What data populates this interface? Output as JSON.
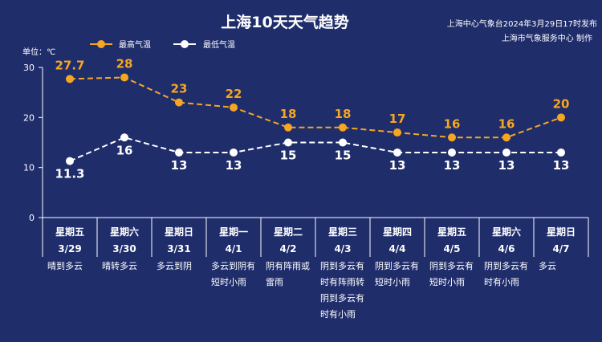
{
  "title": "上海10天天气趋势",
  "publisher": {
    "line1": "上海中心气象台2024年3月29日17时发布",
    "line2": "上海市气象服务中心 制作"
  },
  "unit_label": "单位：℃",
  "legend": {
    "high": "最高气温",
    "low": "最低气温"
  },
  "colors": {
    "background": "#1f2d6b",
    "high": "#f5a623",
    "low": "#ffffff",
    "axis": "#ffffff"
  },
  "chart_data": {
    "type": "line",
    "categories": [
      "3/29",
      "3/30",
      "3/31",
      "4/1",
      "4/2",
      "4/3",
      "4/4",
      "4/5",
      "4/6",
      "4/7"
    ],
    "weekdays": [
      "星期五",
      "星期六",
      "星期日",
      "星期一",
      "星期二",
      "星期三",
      "星期四",
      "星期五",
      "星期六",
      "星期日"
    ],
    "weather": [
      [
        "晴到多云"
      ],
      [
        "晴转多云"
      ],
      [
        "多云到阴"
      ],
      [
        "多云到阴有",
        "短时小雨"
      ],
      [
        "阴有阵雨或",
        "雷雨"
      ],
      [
        "阴到多云有",
        "时有阵雨转",
        "阴到多云有",
        "时有小雨"
      ],
      [
        "阴到多云有",
        "短时小雨"
      ],
      [
        "阴到多云有",
        "短时小雨"
      ],
      [
        "阴到多云有",
        "时有小雨"
      ],
      [
        "多云"
      ]
    ],
    "series": [
      {
        "name": "最高气温",
        "values": [
          27.7,
          28,
          23,
          22,
          18,
          18,
          17,
          16,
          16,
          20
        ],
        "labels": [
          "27.7",
          "28",
          "23",
          "22",
          "18",
          "18",
          "17",
          "16",
          "16",
          "20"
        ]
      },
      {
        "name": "最低气温",
        "values": [
          11.3,
          16,
          13,
          13,
          15,
          15,
          13,
          13,
          13,
          13
        ],
        "labels": [
          "11.3",
          "16",
          "13",
          "13",
          "15",
          "15",
          "13",
          "13",
          "13",
          "13"
        ]
      }
    ],
    "ylim": [
      0,
      30
    ],
    "yticks": [
      "0",
      "10",
      "20",
      "30"
    ],
    "line_style": "dashed",
    "grid": false
  }
}
